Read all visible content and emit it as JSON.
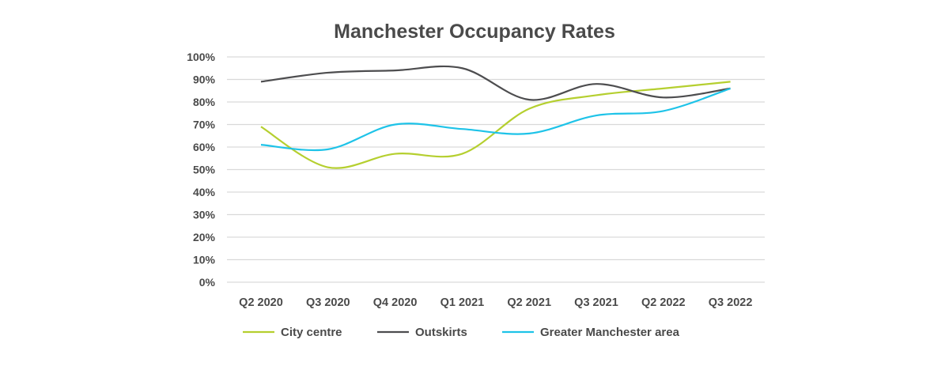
{
  "chart_data": {
    "type": "line",
    "title": "Manchester Occupancy Rates",
    "xlabel": "",
    "ylabel": "",
    "categories": [
      "Q2 2020",
      "Q3 2020",
      "Q4 2020",
      "Q1 2021",
      "Q2 2021",
      "Q3 2021",
      "Q2 2022",
      "Q3 2022"
    ],
    "y_ticks": [
      "0%",
      "10%",
      "20%",
      "30%",
      "40%",
      "50%",
      "60%",
      "70%",
      "80%",
      "90%",
      "100%"
    ],
    "ylim": [
      0,
      100
    ],
    "grid": true,
    "legend_position": "bottom",
    "series": [
      {
        "name": "City centre",
        "color": "#b5cf2f",
        "values": [
          69,
          51,
          57,
          57,
          77,
          83,
          86,
          89
        ]
      },
      {
        "name": "Outskirts",
        "color": "#4d4d4f",
        "values": [
          89,
          93,
          94,
          95,
          81,
          88,
          82,
          86
        ]
      },
      {
        "name": "Greater Manchester area",
        "color": "#1ec3e8",
        "values": [
          61,
          59,
          70,
          68,
          66,
          74,
          76,
          86
        ]
      }
    ]
  }
}
